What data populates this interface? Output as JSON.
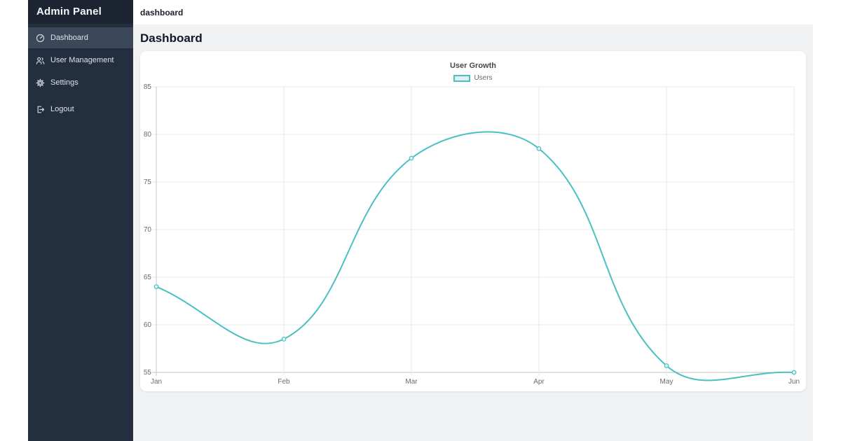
{
  "sidebar": {
    "title": "Admin Panel",
    "items": [
      {
        "label": "Dashboard",
        "icon": "gauge-icon",
        "active": true
      },
      {
        "label": "User Management",
        "icon": "users-icon",
        "active": false
      },
      {
        "label": "Settings",
        "icon": "gear-icon",
        "active": false
      },
      {
        "label": "Logout",
        "icon": "logout-icon",
        "active": false
      }
    ]
  },
  "topbar": {
    "breadcrumb": "dashboard"
  },
  "main": {
    "heading": "Dashboard"
  },
  "chart_data": {
    "type": "line",
    "title": "User Growth",
    "categories": [
      "Jan",
      "Feb",
      "Mar",
      "Apr",
      "May",
      "Jun"
    ],
    "series": [
      {
        "name": "Users",
        "values": [
          64,
          58.5,
          77.5,
          78.5,
          55.7,
          55
        ]
      }
    ],
    "ylim": [
      55,
      85
    ],
    "yticks": [
      55,
      60,
      65,
      70,
      75,
      80,
      85
    ],
    "grid": true,
    "legend_position": "top",
    "line_color": "#4bc0c0",
    "point_fill": "#dff0f0",
    "line_tension": 0.4,
    "fill": false
  },
  "theme": {
    "accent": "#4bc0c0",
    "sidebar_bg": "#232f3e",
    "sidebar_header_bg": "#1b2430",
    "sidebar_active_bg": "#3b4859",
    "content_bg": "#f1f2f4",
    "grid_color": "#e9e9e9",
    "axis_color": "#c6c6c6",
    "text_muted": "#6b6b6b"
  }
}
